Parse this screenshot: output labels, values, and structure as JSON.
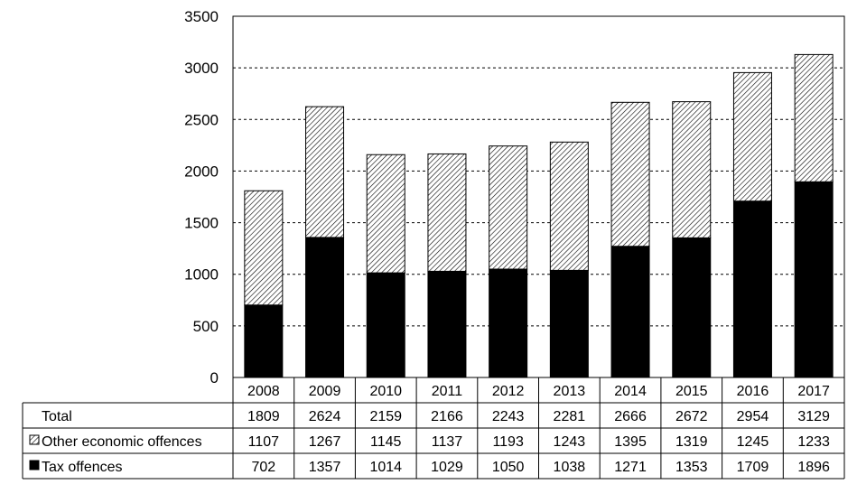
{
  "chart_data": {
    "type": "bar",
    "stacked": true,
    "categories": [
      "2008",
      "2009",
      "2010",
      "2011",
      "2012",
      "2013",
      "2014",
      "2015",
      "2016",
      "2017"
    ],
    "series": [
      {
        "name": "Tax offences",
        "values": [
          702,
          1357,
          1014,
          1029,
          1050,
          1038,
          1271,
          1353,
          1709,
          1896
        ],
        "color": "#000000",
        "pattern": "solid"
      },
      {
        "name": "Other economic offences",
        "values": [
          1107,
          1267,
          1145,
          1137,
          1193,
          1243,
          1395,
          1319,
          1245,
          1233
        ],
        "color": "#000000",
        "pattern": "diagonal-hatch"
      }
    ],
    "totals": {
      "name": "Total",
      "values": [
        1809,
        2624,
        2159,
        2166,
        2243,
        2281,
        2666,
        2672,
        2954,
        3129
      ]
    },
    "title": "",
    "xlabel": "",
    "ylabel": "",
    "ylim": [
      0,
      3500
    ],
    "yticks": [
      0,
      500,
      1000,
      1500,
      2000,
      2500,
      3000,
      3500
    ],
    "grid": "horizontal-dashed",
    "legend": "data-table-below"
  }
}
